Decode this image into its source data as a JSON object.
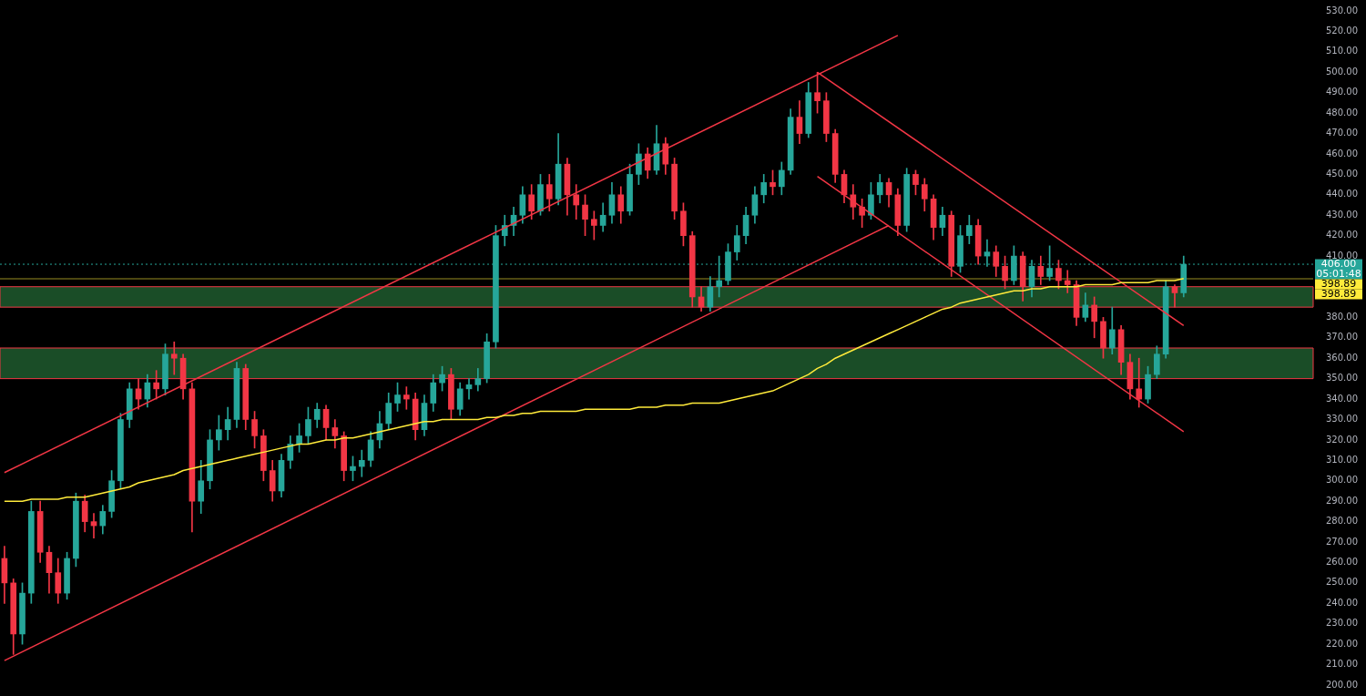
{
  "chart_data": {
    "type": "candlestick",
    "categories": [
      null,
      null,
      null,
      null,
      null,
      null,
      null,
      null,
      null,
      null,
      null,
      null,
      null,
      null,
      null,
      null,
      null,
      null,
      null,
      null,
      null,
      null,
      null,
      null,
      null,
      null,
      null,
      null,
      null,
      null,
      null,
      null,
      null,
      null,
      null,
      null,
      null,
      null,
      null,
      null,
      null,
      null,
      null,
      null,
      null,
      null,
      null,
      null,
      null,
      null,
      null,
      null,
      null,
      null,
      null,
      null,
      null,
      null,
      null,
      null,
      null,
      null,
      null,
      null,
      null,
      null,
      null,
      null,
      null,
      null,
      null,
      null,
      null,
      null,
      null,
      null,
      null,
      null,
      null,
      null,
      null,
      null,
      null,
      null,
      null,
      null,
      null,
      null,
      null,
      null,
      null,
      null,
      null,
      null,
      null,
      null,
      null,
      null,
      null,
      null,
      null,
      null,
      null,
      null,
      null,
      null,
      null,
      null,
      null,
      null,
      null,
      null,
      null,
      null,
      null,
      null,
      null,
      null,
      null,
      null,
      null,
      null,
      null,
      null,
      null,
      null,
      null,
      null,
      null,
      null,
      null,
      null,
      null,
      null,
      null,
      null,
      null,
      null,
      null,
      null,
      null,
      null,
      null,
      null,
      null,
      null,
      null
    ],
    "ohlc": [
      [
        262,
        268,
        240,
        250
      ],
      [
        250,
        252,
        215,
        225
      ],
      [
        225,
        250,
        220,
        245
      ],
      [
        245,
        290,
        240,
        285
      ],
      [
        285,
        290,
        260,
        265
      ],
      [
        265,
        268,
        245,
        255
      ],
      [
        255,
        262,
        240,
        245
      ],
      [
        245,
        265,
        242,
        262
      ],
      [
        262,
        294,
        258,
        290
      ],
      [
        290,
        293,
        275,
        280
      ],
      [
        280,
        284,
        272,
        278
      ],
      [
        278,
        288,
        274,
        285
      ],
      [
        285,
        305,
        282,
        300
      ],
      [
        300,
        333,
        296,
        330
      ],
      [
        330,
        348,
        326,
        345
      ],
      [
        345,
        350,
        335,
        340
      ],
      [
        340,
        352,
        336,
        348
      ],
      [
        348,
        354,
        340,
        345
      ],
      [
        345,
        367,
        342,
        362
      ],
      [
        362,
        368,
        352,
        360
      ],
      [
        360,
        362,
        340,
        345
      ],
      [
        345,
        348,
        275,
        290
      ],
      [
        290,
        310,
        284,
        300
      ],
      [
        300,
        325,
        296,
        320
      ],
      [
        320,
        332,
        315,
        325
      ],
      [
        325,
        336,
        320,
        330
      ],
      [
        330,
        358,
        326,
        355
      ],
      [
        355,
        357,
        325,
        330
      ],
      [
        330,
        334,
        316,
        322
      ],
      [
        322,
        325,
        300,
        305
      ],
      [
        305,
        310,
        290,
        295
      ],
      [
        295,
        313,
        292,
        310
      ],
      [
        310,
        322,
        306,
        318
      ],
      [
        318,
        328,
        314,
        322
      ],
      [
        322,
        336,
        318,
        330
      ],
      [
        330,
        338,
        326,
        335
      ],
      [
        335,
        337,
        320,
        326
      ],
      [
        326,
        330,
        316,
        322
      ],
      [
        322,
        324,
        300,
        305
      ],
      [
        305,
        312,
        300,
        307
      ],
      [
        307,
        315,
        302,
        310
      ],
      [
        310,
        324,
        307,
        320
      ],
      [
        320,
        334,
        316,
        328
      ],
      [
        328,
        343,
        325,
        338
      ],
      [
        338,
        348,
        334,
        342
      ],
      [
        342,
        346,
        335,
        340
      ],
      [
        340,
        343,
        320,
        325
      ],
      [
        325,
        342,
        322,
        338
      ],
      [
        338,
        352,
        334,
        348
      ],
      [
        348,
        356,
        344,
        352
      ],
      [
        352,
        355,
        330,
        335
      ],
      [
        335,
        348,
        332,
        345
      ],
      [
        345,
        350,
        340,
        347
      ],
      [
        347,
        355,
        344,
        350
      ],
      [
        350,
        372,
        348,
        368
      ],
      [
        368,
        425,
        365,
        420
      ],
      [
        420,
        430,
        415,
        425
      ],
      [
        425,
        434,
        420,
        430
      ],
      [
        430,
        444,
        426,
        440
      ],
      [
        440,
        445,
        428,
        432
      ],
      [
        432,
        450,
        430,
        445
      ],
      [
        445,
        450,
        432,
        438
      ],
      [
        438,
        470,
        435,
        455
      ],
      [
        455,
        458,
        430,
        440
      ],
      [
        440,
        445,
        428,
        435
      ],
      [
        435,
        440,
        420,
        428
      ],
      [
        428,
        432,
        418,
        425
      ],
      [
        425,
        436,
        422,
        430
      ],
      [
        430,
        446,
        426,
        440
      ],
      [
        440,
        444,
        426,
        432
      ],
      [
        432,
        455,
        430,
        450
      ],
      [
        450,
        465,
        445,
        460
      ],
      [
        460,
        463,
        448,
        452
      ],
      [
        452,
        474,
        450,
        465
      ],
      [
        465,
        468,
        450,
        455
      ],
      [
        455,
        458,
        428,
        432
      ],
      [
        432,
        436,
        415,
        420
      ],
      [
        420,
        422,
        385,
        390
      ],
      [
        390,
        395,
        383,
        385
      ],
      [
        385,
        400,
        383,
        395
      ],
      [
        395,
        410,
        390,
        398
      ],
      [
        398,
        416,
        396,
        412
      ],
      [
        412,
        425,
        408,
        420
      ],
      [
        420,
        434,
        416,
        430
      ],
      [
        430,
        444,
        426,
        440
      ],
      [
        440,
        450,
        436,
        446
      ],
      [
        446,
        452,
        440,
        444
      ],
      [
        444,
        456,
        440,
        452
      ],
      [
        452,
        482,
        450,
        478
      ],
      [
        478,
        486,
        465,
        470
      ],
      [
        470,
        495,
        468,
        490
      ],
      [
        490,
        500,
        480,
        486
      ],
      [
        486,
        490,
        466,
        470
      ],
      [
        470,
        472,
        446,
        450
      ],
      [
        450,
        452,
        436,
        440
      ],
      [
        440,
        445,
        428,
        434
      ],
      [
        434,
        438,
        424,
        430
      ],
      [
        430,
        446,
        428,
        440
      ],
      [
        440,
        450,
        436,
        446
      ],
      [
        446,
        448,
        434,
        440
      ],
      [
        440,
        443,
        420,
        425
      ],
      [
        425,
        453,
        422,
        450
      ],
      [
        450,
        452,
        440,
        445
      ],
      [
        445,
        448,
        432,
        438
      ],
      [
        438,
        440,
        418,
        424
      ],
      [
        424,
        434,
        420,
        430
      ],
      [
        430,
        432,
        400,
        405
      ],
      [
        405,
        425,
        402,
        420
      ],
      [
        420,
        430,
        416,
        425
      ],
      [
        425,
        428,
        406,
        410
      ],
      [
        410,
        418,
        405,
        412
      ],
      [
        412,
        415,
        400,
        405
      ],
      [
        405,
        410,
        394,
        398
      ],
      [
        398,
        415,
        396,
        410
      ],
      [
        410,
        412,
        388,
        395
      ],
      [
        395,
        408,
        390,
        405
      ],
      [
        405,
        410,
        396,
        400
      ],
      [
        400,
        415,
        398,
        404
      ],
      [
        404,
        408,
        394,
        398
      ],
      [
        398,
        403,
        392,
        396
      ],
      [
        396,
        398,
        376,
        380
      ],
      [
        380,
        392,
        378,
        386
      ],
      [
        386,
        390,
        370,
        378
      ],
      [
        378,
        380,
        360,
        365
      ],
      [
        365,
        385,
        362,
        374
      ],
      [
        374,
        376,
        352,
        358
      ],
      [
        358,
        362,
        340,
        345
      ],
      [
        345,
        360,
        336,
        340
      ],
      [
        340,
        356,
        338,
        352
      ],
      [
        352,
        366,
        350,
        362
      ],
      [
        362,
        398,
        360,
        395
      ],
      [
        395,
        396,
        385,
        392
      ],
      [
        392,
        410,
        390,
        406
      ],
      null,
      null,
      null,
      null,
      null,
      null,
      null,
      null,
      null,
      null,
      null,
      null,
      null,
      null
    ],
    "series": [
      {
        "type": "line",
        "color": "#ffeb3b",
        "values": [
          290,
          290,
          290,
          291,
          291,
          291,
          291,
          292,
          292,
          292,
          293,
          294,
          295,
          296,
          297,
          299,
          300,
          301,
          302,
          303,
          305,
          306,
          307,
          308,
          309,
          310,
          311,
          312,
          313,
          314,
          315,
          316,
          317,
          318,
          318,
          319,
          320,
          320,
          321,
          321,
          322,
          323,
          324,
          325,
          326,
          327,
          328,
          329,
          329,
          330,
          330,
          330,
          330,
          330,
          331,
          331,
          332,
          332,
          333,
          333,
          334,
          334,
          334,
          334,
          334,
          335,
          335,
          335,
          335,
          335,
          335,
          336,
          336,
          336,
          337,
          337,
          337,
          338,
          338,
          338,
          338,
          339,
          340,
          341,
          342,
          343,
          344,
          346,
          348,
          350,
          352,
          355,
          357,
          360,
          362,
          364,
          366,
          368,
          370,
          372,
          374,
          376,
          378,
          380,
          382,
          384,
          385,
          387,
          388,
          389,
          390,
          391,
          392,
          393,
          393,
          394,
          394,
          395,
          395,
          395,
          395,
          396,
          396,
          396,
          396,
          397,
          397,
          397,
          397,
          398,
          398,
          398,
          399,
          null,
          null,
          null,
          null,
          null,
          null,
          null,
          null,
          null,
          null,
          null,
          null,
          null,
          null
        ]
      },
      {
        "type": "line",
        "color": "#f23645",
        "values": [
          304,
          null,
          null,
          null,
          null,
          null,
          null,
          null,
          null,
          null,
          null,
          null,
          null,
          null,
          null,
          null,
          null,
          null,
          null,
          null,
          null,
          null,
          null,
          null,
          null,
          null,
          null,
          null,
          null,
          null,
          null,
          null,
          null,
          null,
          null,
          null,
          null,
          null,
          null,
          null,
          null,
          null,
          null,
          null,
          null,
          null,
          null,
          null,
          null,
          null,
          null,
          null,
          null,
          null,
          null,
          null,
          null,
          null,
          null,
          null,
          null,
          null,
          null,
          null,
          null,
          null,
          null,
          null,
          null,
          null,
          null,
          null,
          null,
          null,
          null,
          null,
          null,
          null,
          null,
          null,
          null,
          null,
          null,
          null,
          null,
          null,
          null,
          null,
          null,
          null,
          null,
          null,
          null,
          null,
          null,
          null,
          null,
          null,
          null,
          null,
          518,
          null,
          null,
          null,
          null,
          null,
          null,
          null,
          null,
          null,
          null,
          null,
          null,
          null,
          null,
          null,
          null,
          null,
          null,
          null,
          null,
          null,
          null,
          null,
          null,
          null,
          null,
          null,
          null,
          null,
          null,
          null,
          null,
          null,
          null,
          null,
          null,
          null,
          null,
          null,
          null,
          null,
          null,
          null,
          null,
          null,
          null
        ]
      },
      {
        "type": "line",
        "color": "#f23645",
        "values": [
          212,
          null,
          null,
          null,
          null,
          null,
          null,
          null,
          null,
          null,
          null,
          null,
          null,
          null,
          null,
          null,
          null,
          null,
          null,
          null,
          null,
          null,
          null,
          null,
          null,
          null,
          null,
          null,
          null,
          null,
          null,
          null,
          null,
          null,
          null,
          null,
          null,
          null,
          null,
          null,
          null,
          null,
          null,
          null,
          null,
          null,
          null,
          null,
          null,
          null,
          null,
          null,
          null,
          null,
          null,
          null,
          null,
          null,
          null,
          null,
          null,
          null,
          null,
          null,
          null,
          null,
          null,
          null,
          null,
          null,
          null,
          null,
          null,
          null,
          null,
          null,
          null,
          null,
          null,
          null,
          null,
          null,
          null,
          null,
          null,
          null,
          null,
          null,
          null,
          null,
          null,
          null,
          null,
          null,
          null,
          null,
          null,
          null,
          null,
          425,
          null,
          null,
          null,
          null,
          null,
          null,
          null,
          null,
          null,
          null,
          null,
          null,
          null,
          null,
          null,
          null,
          null,
          null,
          null,
          null,
          null,
          null,
          null,
          null,
          null,
          null,
          null,
          null,
          null,
          null,
          null,
          null,
          null,
          null,
          null,
          null,
          null,
          null,
          null,
          null,
          null,
          null,
          null,
          null,
          null,
          null,
          null
        ]
      },
      {
        "type": "line",
        "color": "#f23645",
        "values": [
          null,
          null,
          null,
          null,
          null,
          null,
          null,
          null,
          null,
          null,
          null,
          null,
          null,
          null,
          null,
          null,
          null,
          null,
          null,
          null,
          null,
          null,
          null,
          null,
          null,
          null,
          null,
          null,
          null,
          null,
          null,
          null,
          null,
          null,
          null,
          null,
          null,
          null,
          null,
          null,
          null,
          null,
          null,
          null,
          null,
          null,
          null,
          null,
          null,
          null,
          null,
          null,
          null,
          null,
          null,
          null,
          null,
          null,
          null,
          null,
          null,
          null,
          null,
          null,
          null,
          null,
          null,
          null,
          null,
          null,
          null,
          null,
          null,
          null,
          null,
          null,
          null,
          null,
          null,
          null,
          null,
          null,
          null,
          null,
          null,
          null,
          null,
          null,
          null,
          null,
          null,
          500,
          null,
          null,
          null,
          null,
          null,
          null,
          null,
          null,
          null,
          null,
          null,
          null,
          null,
          null,
          null,
          null,
          null,
          null,
          null,
          null,
          null,
          null,
          null,
          null,
          null,
          null,
          null,
          null,
          null,
          null,
          null,
          null,
          null,
          null,
          null,
          null,
          null,
          null,
          null,
          null,
          376,
          null,
          null,
          null,
          null,
          null,
          null,
          null,
          null,
          null,
          null,
          null,
          null,
          null,
          null
        ]
      },
      {
        "type": "line",
        "color": "#f23645",
        "values": [
          null,
          null,
          null,
          null,
          null,
          null,
          null,
          null,
          null,
          null,
          null,
          null,
          null,
          null,
          null,
          null,
          null,
          null,
          null,
          null,
          null,
          null,
          null,
          null,
          null,
          null,
          null,
          null,
          null,
          null,
          null,
          null,
          null,
          null,
          null,
          null,
          null,
          null,
          null,
          null,
          null,
          null,
          null,
          null,
          null,
          null,
          null,
          null,
          null,
          null,
          null,
          null,
          null,
          null,
          null,
          null,
          null,
          null,
          null,
          null,
          null,
          null,
          null,
          null,
          null,
          null,
          null,
          null,
          null,
          null,
          null,
          null,
          null,
          null,
          null,
          null,
          null,
          null,
          null,
          null,
          null,
          null,
          null,
          null,
          null,
          null,
          null,
          null,
          null,
          null,
          null,
          449,
          null,
          null,
          null,
          null,
          null,
          null,
          null,
          null,
          null,
          null,
          null,
          null,
          null,
          null,
          null,
          null,
          null,
          null,
          null,
          null,
          null,
          null,
          null,
          null,
          null,
          null,
          null,
          null,
          null,
          null,
          null,
          null,
          null,
          null,
          null,
          null,
          null,
          null,
          null,
          null,
          324,
          null,
          null,
          null,
          null,
          null,
          null,
          null,
          null,
          null,
          null,
          null,
          null,
          null,
          null
        ]
      }
    ],
    "ylim": [
      200,
      530
    ],
    "yticks": [
      {
        "value": 200,
        "label": "200.00"
      },
      {
        "value": 210,
        "label": "210.00"
      },
      {
        "value": 220,
        "label": "220.00"
      },
      {
        "value": 230,
        "label": "230.00"
      },
      {
        "value": 240,
        "label": "240.00"
      },
      {
        "value": 250,
        "label": "250.00"
      },
      {
        "value": 260,
        "label": "260.00"
      },
      {
        "value": 270,
        "label": "270.00"
      },
      {
        "value": 280,
        "label": "280.00"
      },
      {
        "value": 290,
        "label": "290.00"
      },
      {
        "value": 300,
        "label": "300.00"
      },
      {
        "value": 310,
        "label": "310.00"
      },
      {
        "value": 320,
        "label": "320.00"
      },
      {
        "value": 330,
        "label": "330.00"
      },
      {
        "value": 340,
        "label": "340.00"
      },
      {
        "value": 350,
        "label": "350.00"
      },
      {
        "value": 360,
        "label": "360.00"
      },
      {
        "value": 370,
        "label": "370.00"
      },
      {
        "value": 380,
        "label": "380.00"
      },
      {
        "value": 410,
        "label": "410.00"
      },
      {
        "value": 420,
        "label": "420.00"
      },
      {
        "value": 430,
        "label": "430.00"
      },
      {
        "value": 440,
        "label": "440.00"
      },
      {
        "value": 450,
        "label": "450.00"
      },
      {
        "value": 460,
        "label": "460.00"
      },
      {
        "value": 470,
        "label": "470.00"
      },
      {
        "value": 480,
        "label": "480.00"
      },
      {
        "value": 490,
        "label": "490.00"
      },
      {
        "value": 500,
        "label": "500.00"
      },
      {
        "value": 510,
        "label": "510.00"
      },
      {
        "value": 520,
        "label": "520.00"
      },
      {
        "value": 530,
        "label": "530.00"
      }
    ],
    "bands": [
      {
        "axis": "y",
        "from": 350,
        "to": 365,
        "color": "#1e5a2e"
      },
      {
        "axis": "y",
        "from": 385,
        "to": 395,
        "color": "#1e5a2e"
      }
    ],
    "ref_lines": [
      {
        "axis": "y",
        "value": 406,
        "label": "406.00",
        "color": "#26a69a",
        "line_style": "dotted"
      },
      {
        "axis": "y",
        "value": 398.89,
        "label": "398.89",
        "color": "#ffeb3b"
      }
    ],
    "annotations": [
      "05:01:48",
      "398.89"
    ],
    "tick_labels": "y",
    "legend": false
  }
}
